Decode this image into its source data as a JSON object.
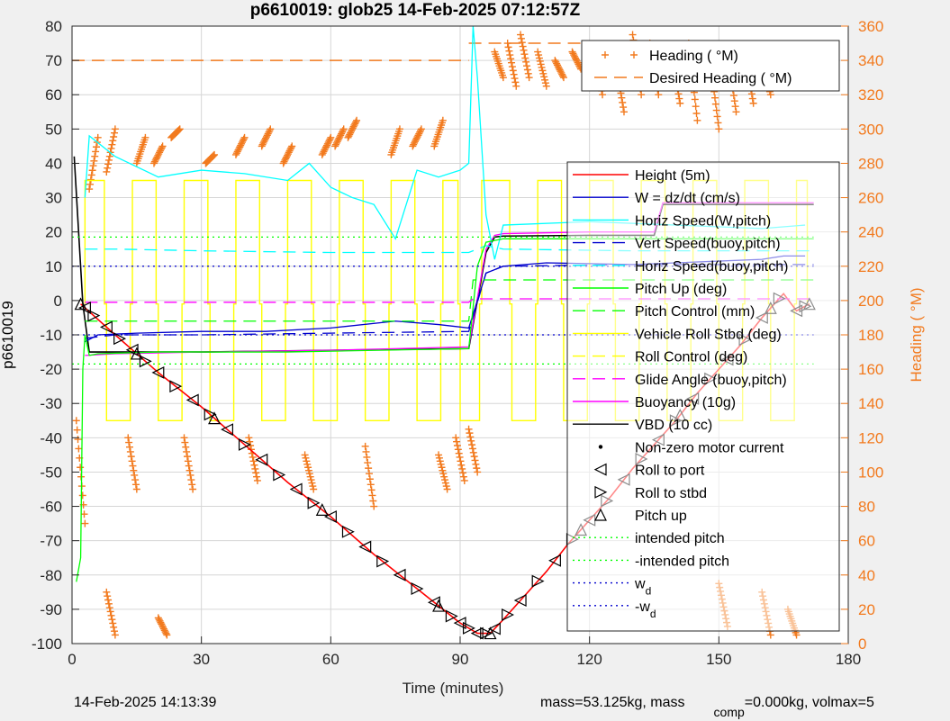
{
  "title": "p6610019: glob25 14-Feb-2025 07:12:57Z",
  "footer": {
    "timestamp": "14-Feb-2025 14:13:39",
    "mass_prefix": "mass=53.125kg, mass",
    "mass_sub": "comp",
    "mass_suffix": "=0.000kg, volmax=5"
  },
  "colors": {
    "red": "#ff0000",
    "blue": "#0000cd",
    "cyan": "#00ffff",
    "green": "#00ff00",
    "yellow": "#ffff00",
    "magenta": "#ff00ff",
    "black": "#000000",
    "orange": "#f27a1e",
    "gridline": "#d6d6d6"
  },
  "chart_data": {
    "type": "line",
    "title": "p6610019: glob25 14-Feb-2025 07:12:57Z",
    "xlabel": "Time (minutes)",
    "ylabel": "p6610019",
    "y2label": "Heading ( °M)",
    "xlim": [
      0,
      180
    ],
    "ylim": [
      -100,
      80
    ],
    "y2lim": [
      0,
      360
    ],
    "xticks": [
      0,
      30,
      60,
      90,
      120,
      150,
      180
    ],
    "yticks": [
      80,
      70,
      60,
      50,
      40,
      30,
      20,
      10,
      0,
      -10,
      -20,
      -30,
      -40,
      -50,
      -60,
      -70,
      -80,
      -90,
      -100
    ],
    "y2ticks": [
      360,
      340,
      320,
      300,
      280,
      260,
      240,
      220,
      200,
      180,
      160,
      140,
      120,
      100,
      80,
      60,
      40,
      20,
      0
    ],
    "grid": true,
    "legend_main_position": "right",
    "legend_heading_position": "top-right",
    "heading_legend": [
      {
        "label": "Heading ( °M)",
        "color": "orange",
        "style": "plus"
      },
      {
        "label": "Desired Heading ( °M)",
        "color": "orange",
        "style": "dash"
      }
    ],
    "legend": [
      {
        "label": "Height (5m)",
        "color": "red",
        "style": "solid"
      },
      {
        "label": "W = dz/dt (cm/s)",
        "color": "blue",
        "style": "solid"
      },
      {
        "label": "Horiz Speed(W,pitch)",
        "color": "cyan",
        "style": "solid"
      },
      {
        "label": "Vert Speed(buoy,pitch)",
        "color": "blue",
        "style": "dash"
      },
      {
        "label": "Horiz Speed(buoy,pitch)",
        "color": "cyan",
        "style": "dash"
      },
      {
        "label": "Pitch Up (deg)",
        "color": "green",
        "style": "solid"
      },
      {
        "label": "Pitch Control (mm)",
        "color": "green",
        "style": "dash"
      },
      {
        "label": "Vehicle Roll Stbd (deg)",
        "color": "yellow",
        "style": "solid"
      },
      {
        "label": "Roll Control (deg)",
        "color": "yellow",
        "style": "dash"
      },
      {
        "label": "Glide Angle (buoy,pitch)",
        "color": "magenta",
        "style": "dash"
      },
      {
        "label": "Buoyancy (10g)",
        "color": "magenta",
        "style": "solid"
      },
      {
        "label": "VBD (10 cc)",
        "color": "black",
        "style": "solid"
      },
      {
        "label": "Non-zero motor current",
        "color": "black",
        "style": "dot-marker"
      },
      {
        "label": "Roll to port",
        "color": "black",
        "style": "tri-left"
      },
      {
        "label": "Roll to stbd",
        "color": "black",
        "style": "tri-right"
      },
      {
        "label": "Pitch up",
        "color": "black",
        "style": "tri-up"
      },
      {
        "label": "intended pitch",
        "color": "green",
        "style": "dotted"
      },
      {
        "label": "-intended pitch",
        "color": "green",
        "style": "dotted"
      },
      {
        "label": "w",
        "sub": "d",
        "color": "blue",
        "style": "dotted"
      },
      {
        "label": "-w",
        "sub": "d",
        "color": "blue",
        "style": "dotted"
      }
    ],
    "series": [
      {
        "name": "Height (5m)",
        "color": "red",
        "style": "solid",
        "x": [
          2,
          10,
          20,
          30,
          40,
          50,
          60,
          70,
          80,
          90,
          94,
          97,
          100,
          105,
          110,
          115,
          120,
          125,
          130,
          135,
          140,
          145,
          150,
          155,
          160,
          165,
          168,
          171
        ],
        "y": [
          -1,
          -10,
          -21,
          -31,
          -42,
          -53,
          -63,
          -74,
          -84,
          -94,
          -97,
          -97,
          -93,
          -86,
          -79,
          -71,
          -64,
          -57,
          -49,
          -42,
          -35,
          -27,
          -20,
          -13,
          -5,
          2,
          -3,
          -1
        ]
      },
      {
        "name": "VBD (10 cc)",
        "color": "black",
        "style": "solid",
        "x": [
          0.5,
          2.5,
          4,
          10,
          30,
          60,
          92,
          96,
          98,
          100,
          120,
          135,
          137,
          172
        ],
        "y": [
          42,
          -1,
          -15,
          -15,
          -15,
          -14.5,
          -14,
          14,
          18.5,
          18.8,
          19,
          19,
          28,
          28
        ]
      },
      {
        "name": "Buoyancy (10g)",
        "color": "magenta",
        "style": "solid",
        "x": [
          3,
          10,
          30,
          60,
          92,
          96,
          98,
          100,
          120,
          135,
          137,
          172
        ],
        "y": [
          -16,
          -15.5,
          -15,
          -14.5,
          -13.5,
          15,
          19,
          19.5,
          20,
          20,
          28.5,
          28.5
        ]
      },
      {
        "name": "W = dz/dt (cm/s)",
        "color": "blue",
        "style": "solid",
        "x": [
          3,
          6,
          15,
          30,
          45,
          60,
          75,
          85,
          92,
          96,
          100,
          110,
          130,
          150,
          160,
          165,
          170
        ],
        "y": [
          -12,
          -10,
          -9.5,
          -9,
          -9,
          -8,
          -6,
          -7,
          -8,
          8,
          10,
          11,
          10.5,
          11.5,
          12,
          13,
          13
        ]
      },
      {
        "name": "Horiz Speed(W,pitch)",
        "color": "cyan",
        "style": "solid",
        "x": [
          3,
          4,
          10,
          20,
          30,
          40,
          50,
          55,
          60,
          65,
          70,
          75,
          80,
          85,
          90,
          92,
          93,
          94,
          96,
          98,
          100,
          120,
          140,
          160,
          170
        ],
        "y": [
          30,
          48,
          42,
          36,
          38,
          37,
          35,
          40,
          33,
          30,
          28,
          18,
          38,
          36,
          38,
          40,
          80,
          65,
          25,
          12,
          22,
          23,
          22,
          21,
          22
        ]
      },
      {
        "name": "Vert Speed(buoy,pitch)",
        "color": "blue",
        "style": "dash",
        "x": [
          3,
          10,
          30,
          60,
          92,
          96,
          100,
          130,
          172
        ],
        "y": [
          -11,
          -10,
          -10,
          -9.5,
          -9,
          8,
          10,
          10.5,
          10.5
        ]
      },
      {
        "name": "Horiz Speed(buoy,pitch)",
        "color": "cyan",
        "style": "dash",
        "x": [
          3,
          10,
          30,
          60,
          92,
          96,
          100,
          130,
          172
        ],
        "y": [
          15,
          15,
          14.5,
          14,
          14,
          16,
          15,
          14.5,
          14.5
        ]
      },
      {
        "name": "Pitch Up (deg)",
        "color": "green",
        "style": "solid",
        "x": [
          1,
          2,
          2.5,
          3,
          4,
          6,
          20,
          50,
          92,
          94,
          96,
          100,
          130,
          172
        ],
        "y": [
          -82,
          -75,
          -20,
          -10,
          -16,
          -15.5,
          -15,
          -15,
          -14,
          10,
          17,
          18,
          18,
          18
        ]
      },
      {
        "name": "Pitch Control (mm)",
        "color": "green",
        "style": "dash",
        "x": [
          3,
          10,
          50,
          92,
          93,
          172
        ],
        "y": [
          -6,
          -6,
          -6,
          -6,
          6,
          6
        ]
      },
      {
        "name": "Glide Angle (buoy,pitch)",
        "color": "magenta",
        "style": "dash",
        "x": [
          3,
          92,
          93,
          172
        ],
        "y": [
          -0.5,
          -0.5,
          0.5,
          0.5
        ]
      },
      {
        "name": "intended pitch",
        "color": "green",
        "style": "dotted",
        "x": [
          0,
          172
        ],
        "y": [
          18.5,
          18.5
        ]
      },
      {
        "name": "-intended pitch",
        "color": "green",
        "style": "dotted",
        "x": [
          0,
          172
        ],
        "y": [
          -18.5,
          -18.5
        ]
      },
      {
        "name": "w_d",
        "color": "blue",
        "style": "dotted",
        "x": [
          0,
          172
        ],
        "y": [
          10,
          10
        ]
      },
      {
        "name": "-w_d",
        "color": "blue",
        "style": "dotted",
        "x": [
          0,
          172
        ],
        "y": [
          -10,
          -10
        ]
      }
    ],
    "roll_switch_times": [
      3,
      8,
      14,
      20,
      26,
      32,
      38,
      44,
      50,
      56,
      62,
      68,
      74,
      80,
      86,
      90,
      95,
      102,
      108,
      114,
      120,
      126,
      132,
      138,
      144,
      150,
      156,
      162,
      168
    ],
    "roll_amplitude": 35,
    "markers": {
      "tri_left_x": [
        3,
        8,
        14,
        20,
        28,
        36,
        44,
        52,
        60,
        68,
        76,
        84,
        90,
        94,
        98,
        104,
        112,
        120,
        128,
        136,
        144,
        152,
        160,
        168
      ],
      "tri_right_x": [
        5,
        11,
        17,
        24,
        32,
        40,
        48,
        56,
        64,
        72,
        80,
        88,
        92,
        96,
        101,
        108,
        116,
        124,
        132,
        140,
        148,
        156,
        164,
        170
      ],
      "tri_up_x": [
        2,
        15,
        33,
        58,
        85,
        97,
        118,
        141,
        162,
        171
      ]
    },
    "heading_clusters": [
      {
        "x": [
          1,
          3
        ],
        "h": [
          130,
          70
        ]
      },
      {
        "x": [
          4,
          6
        ],
        "h": [
          265,
          295
        ]
      },
      {
        "x": [
          8,
          10
        ],
        "h": [
          275,
          300
        ]
      },
      {
        "x": [
          13,
          15
        ],
        "h": [
          120,
          90
        ]
      },
      {
        "x": [
          15,
          17
        ],
        "h": [
          280,
          295
        ]
      },
      {
        "x": [
          19,
          21
        ],
        "h": [
          280,
          290
        ]
      },
      {
        "x": [
          23,
          25
        ],
        "h": [
          295,
          300
        ]
      },
      {
        "x": [
          26,
          28
        ],
        "h": [
          120,
          90
        ]
      },
      {
        "x": [
          31,
          33
        ],
        "h": [
          280,
          285
        ]
      },
      {
        "x": [
          38,
          40
        ],
        "h": [
          285,
          295
        ]
      },
      {
        "x": [
          41,
          43
        ],
        "h": [
          120,
          95
        ]
      },
      {
        "x": [
          44,
          46
        ],
        "h": [
          290,
          300
        ]
      },
      {
        "x": [
          49,
          51
        ],
        "h": [
          280,
          290
        ]
      },
      {
        "x": [
          54,
          56
        ],
        "h": [
          110,
          90
        ]
      },
      {
        "x": [
          58,
          60
        ],
        "h": [
          285,
          295
        ]
      },
      {
        "x": [
          61,
          63
        ],
        "h": [
          290,
          300
        ]
      },
      {
        "x": [
          64,
          66
        ],
        "h": [
          295,
          305
        ]
      },
      {
        "x": [
          68,
          70
        ],
        "h": [
          115,
          80
        ]
      },
      {
        "x": [
          74,
          76
        ],
        "h": [
          285,
          300
        ]
      },
      {
        "x": [
          79,
          81
        ],
        "h": [
          290,
          300
        ]
      },
      {
        "x": [
          84,
          86
        ],
        "h": [
          290,
          305
        ]
      },
      {
        "x": [
          85,
          87
        ],
        "h": [
          110,
          90
        ]
      },
      {
        "x": [
          89,
          91
        ],
        "h": [
          120,
          95
        ]
      },
      {
        "x": [
          92,
          94
        ],
        "h": [
          125,
          100
        ]
      },
      {
        "x": [
          98,
          100
        ],
        "h": [
          345,
          330
        ]
      },
      {
        "x": [
          101,
          103
        ],
        "h": [
          350,
          325
        ]
      },
      {
        "x": [
          104,
          106
        ],
        "h": [
          355,
          330
        ]
      },
      {
        "x": [
          108,
          110
        ],
        "h": [
          345,
          325
        ]
      },
      {
        "x": [
          112,
          114
        ],
        "h": [
          340,
          330
        ]
      },
      {
        "x": [
          116,
          118
        ],
        "h": [
          345,
          335
        ]
      },
      {
        "x": [
          121,
          123
        ],
        "h": [
          345,
          320
        ]
      },
      {
        "x": [
          126,
          128
        ],
        "h": [
          340,
          310
        ]
      },
      {
        "x": [
          130,
          132
        ],
        "h": [
          355,
          320
        ]
      },
      {
        "x": [
          134,
          136
        ],
        "h": [
          350,
          320
        ]
      },
      {
        "x": [
          139,
          141
        ],
        "h": [
          345,
          315
        ]
      },
      {
        "x": [
          143,
          145
        ],
        "h": [
          350,
          305
        ]
      },
      {
        "x": [
          148,
          150
        ],
        "h": [
          340,
          300
        ]
      },
      {
        "x": [
          152,
          154
        ],
        "h": [
          345,
          310
        ]
      },
      {
        "x": [
          156,
          158
        ],
        "h": [
          345,
          315
        ]
      },
      {
        "x": [
          160,
          162
        ],
        "h": [
          340,
          320
        ]
      },
      {
        "x": [
          164,
          166
        ],
        "h": [
          345,
          330
        ]
      },
      {
        "x": [
          168,
          170
        ],
        "h": [
          345,
          335
        ]
      },
      {
        "x": [
          150,
          152
        ],
        "h": [
          35,
          10
        ]
      },
      {
        "x": [
          160,
          162
        ],
        "h": [
          30,
          5
        ]
      },
      {
        "x": [
          166,
          168
        ],
        "h": [
          20,
          5
        ]
      },
      {
        "x": [
          8,
          10
        ],
        "h": [
          30,
          5
        ]
      },
      {
        "x": [
          20,
          22
        ],
        "h": [
          15,
          5
        ]
      }
    ],
    "desired_heading_segments": [
      {
        "x": [
          0,
          92
        ],
        "h": [
          340,
          340
        ]
      },
      {
        "x": [
          92,
          172
        ],
        "h": [
          350,
          350
        ]
      }
    ]
  }
}
